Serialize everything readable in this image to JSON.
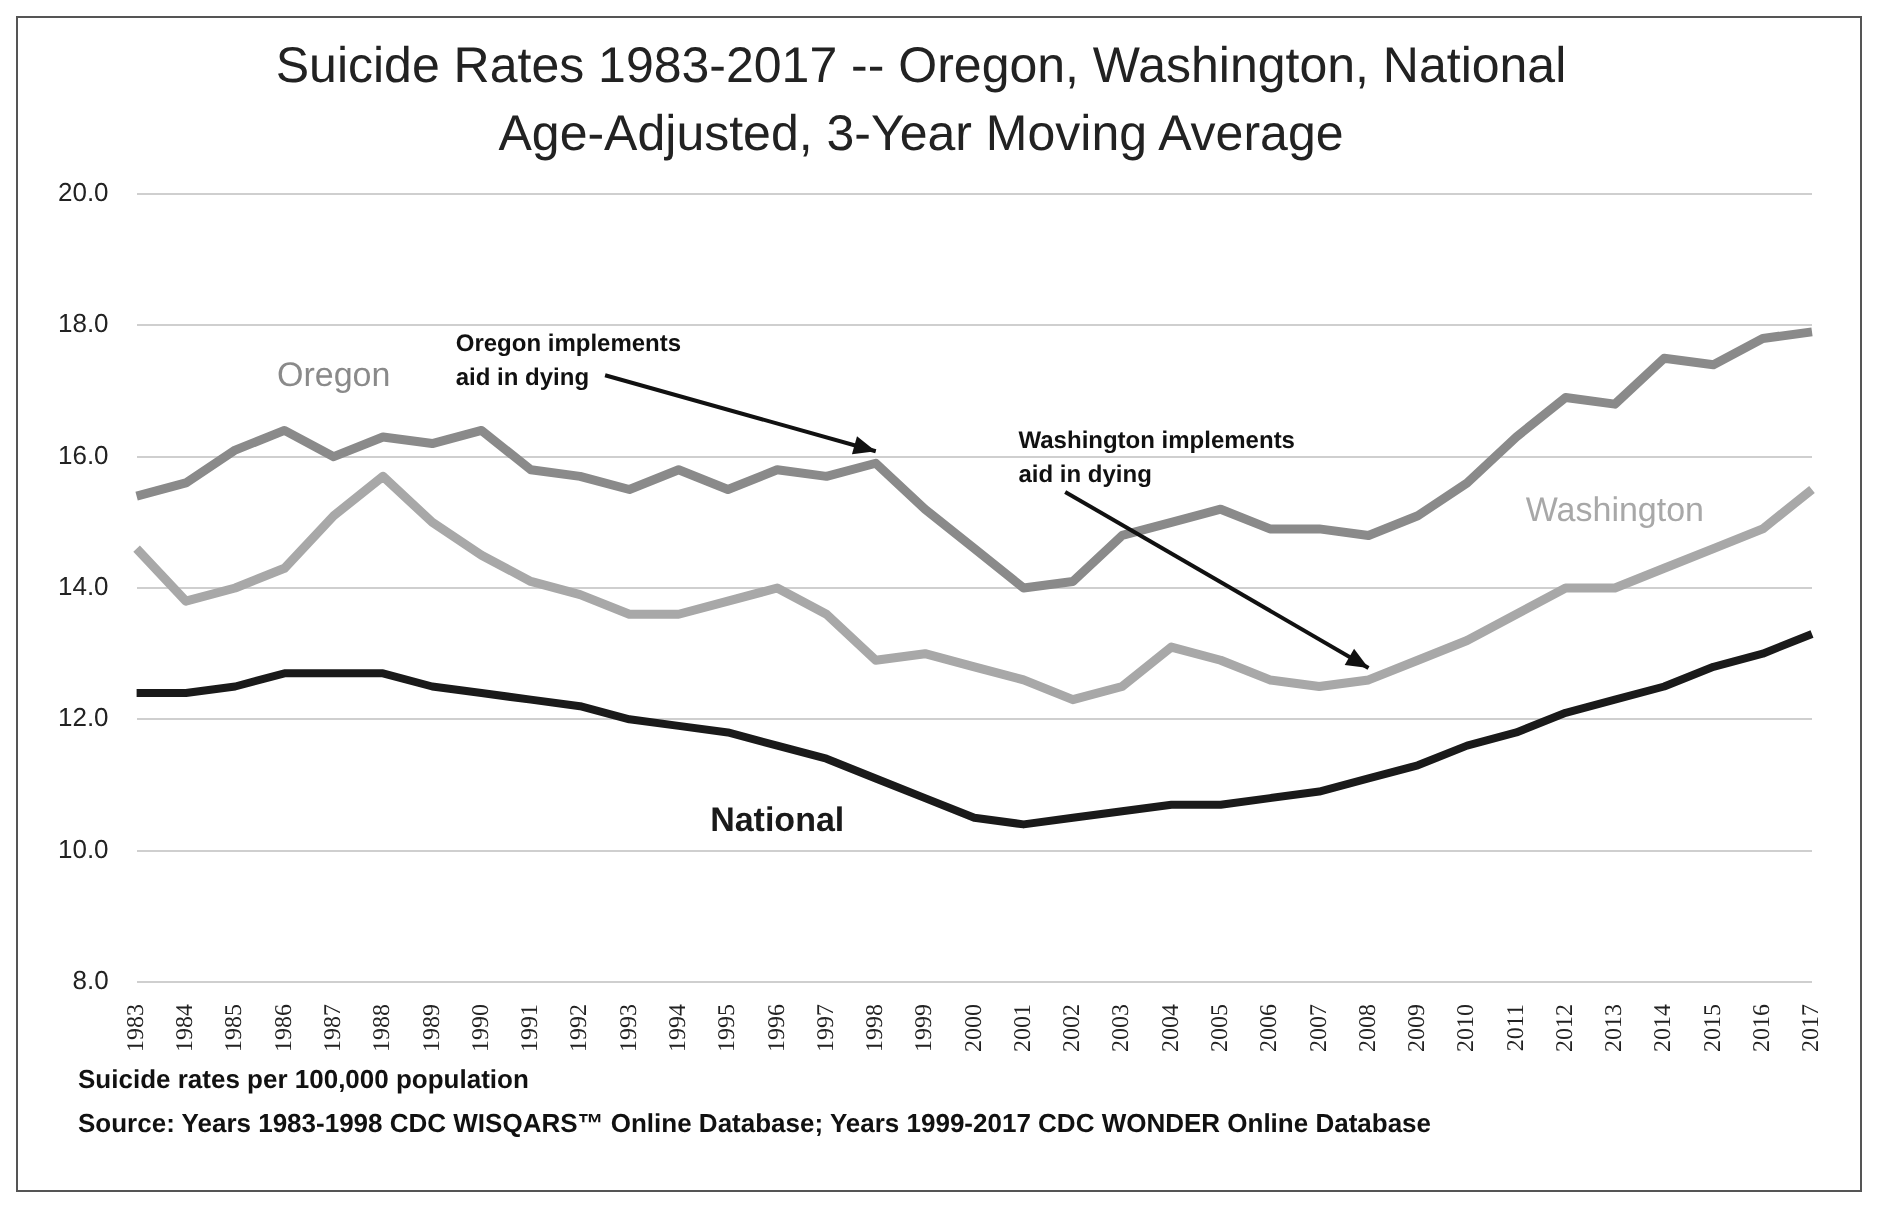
{
  "chart_data": {
    "type": "line",
    "title": "Suicide Rates 1983-2017 -- Oregon, Washington, National",
    "subtitle": "Age-Adjusted, 3-Year Moving Average",
    "categories": [
      "1983",
      "1984",
      "1985",
      "1986",
      "1987",
      "1988",
      "1989",
      "1990",
      "1991",
      "1992",
      "1993",
      "1994",
      "1995",
      "1996",
      "1997",
      "1998",
      "1999",
      "2000",
      "2001",
      "2002",
      "2003",
      "2004",
      "2005",
      "2006",
      "2007",
      "2008",
      "2009",
      "2010",
      "2011",
      "2012",
      "2013",
      "2014",
      "2015",
      "2016",
      "2017"
    ],
    "series": [
      {
        "name": "Oregon",
        "color": "#8a8a8a",
        "values": [
          15.4,
          15.6,
          16.1,
          16.4,
          16.0,
          16.3,
          16.2,
          16.4,
          15.8,
          15.7,
          15.5,
          15.8,
          15.5,
          15.8,
          15.7,
          15.9,
          15.2,
          14.6,
          14.0,
          14.1,
          14.8,
          15.0,
          15.2,
          14.9,
          14.9,
          14.8,
          15.1,
          15.6,
          16.3,
          16.9,
          16.8,
          17.5,
          17.4,
          17.8,
          17.9
        ]
      },
      {
        "name": "Washington",
        "color": "#a8a8a8",
        "values": [
          14.6,
          13.8,
          14.0,
          14.3,
          15.1,
          15.7,
          15.0,
          14.5,
          14.1,
          13.9,
          13.6,
          13.6,
          13.8,
          14.0,
          13.6,
          12.9,
          13.0,
          12.8,
          12.6,
          12.3,
          12.5,
          13.1,
          12.9,
          12.6,
          12.5,
          12.6,
          12.9,
          13.2,
          13.6,
          14.0,
          14.0,
          14.3,
          14.6,
          14.9,
          15.5
        ]
      },
      {
        "name": "National",
        "color": "#1a1a1a",
        "values": [
          12.4,
          12.4,
          12.5,
          12.7,
          12.7,
          12.7,
          12.5,
          12.4,
          12.3,
          12.2,
          12.0,
          11.9,
          11.8,
          11.6,
          11.4,
          11.1,
          10.8,
          10.5,
          10.4,
          10.5,
          10.6,
          10.7,
          10.7,
          10.8,
          10.9,
          11.1,
          11.3,
          11.6,
          11.8,
          12.1,
          12.3,
          12.5,
          12.8,
          13.0,
          13.3
        ]
      }
    ],
    "ylim": [
      8,
      20
    ],
    "yticks": [
      {
        "value": 8,
        "label": "8.0"
      },
      {
        "value": 10,
        "label": "10.0"
      },
      {
        "value": 12,
        "label": "12.0"
      },
      {
        "value": 14,
        "label": "14.0"
      },
      {
        "value": 16,
        "label": "16.0"
      },
      {
        "value": 18,
        "label": "18.0"
      },
      {
        "value": 20,
        "label": "20.0"
      }
    ],
    "grid": "y",
    "legend": false,
    "marker": "none",
    "line_style": "solid",
    "annotations": [
      {
        "text": "Oregon implements aid in dying",
        "x": "1998",
        "y": 15.9
      },
      {
        "text": "Washington implements aid in dying",
        "x": "2008",
        "y": 12.6
      },
      "Suicide rates per 100,000 population",
      "Source:  Years 1983-1998 CDC WISQARS™ Online Database;  Years 1999-2017 CDC WONDER Online Database"
    ]
  }
}
